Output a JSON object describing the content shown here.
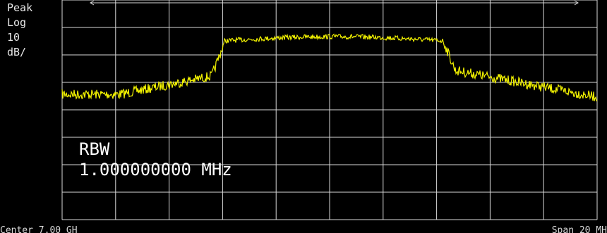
{
  "readout": {
    "lines": [
      "Peak",
      "Log",
      "10",
      "dB/"
    ]
  },
  "annotation": {
    "rbw_title": "RBW",
    "rbw_value": "1.000000000 MHz"
  },
  "bottom": {
    "left_partial": "Center 7.00 GH",
    "right_partial": "Span 20 MH"
  },
  "colors": {
    "background": "#000000",
    "grid": "#d8d8d8",
    "trace": "#f3f300",
    "text": "#ffffff"
  },
  "display": {
    "grid_divisions_x": 10,
    "grid_divisions_y": 8,
    "scale_db_per_div": 10
  }
}
